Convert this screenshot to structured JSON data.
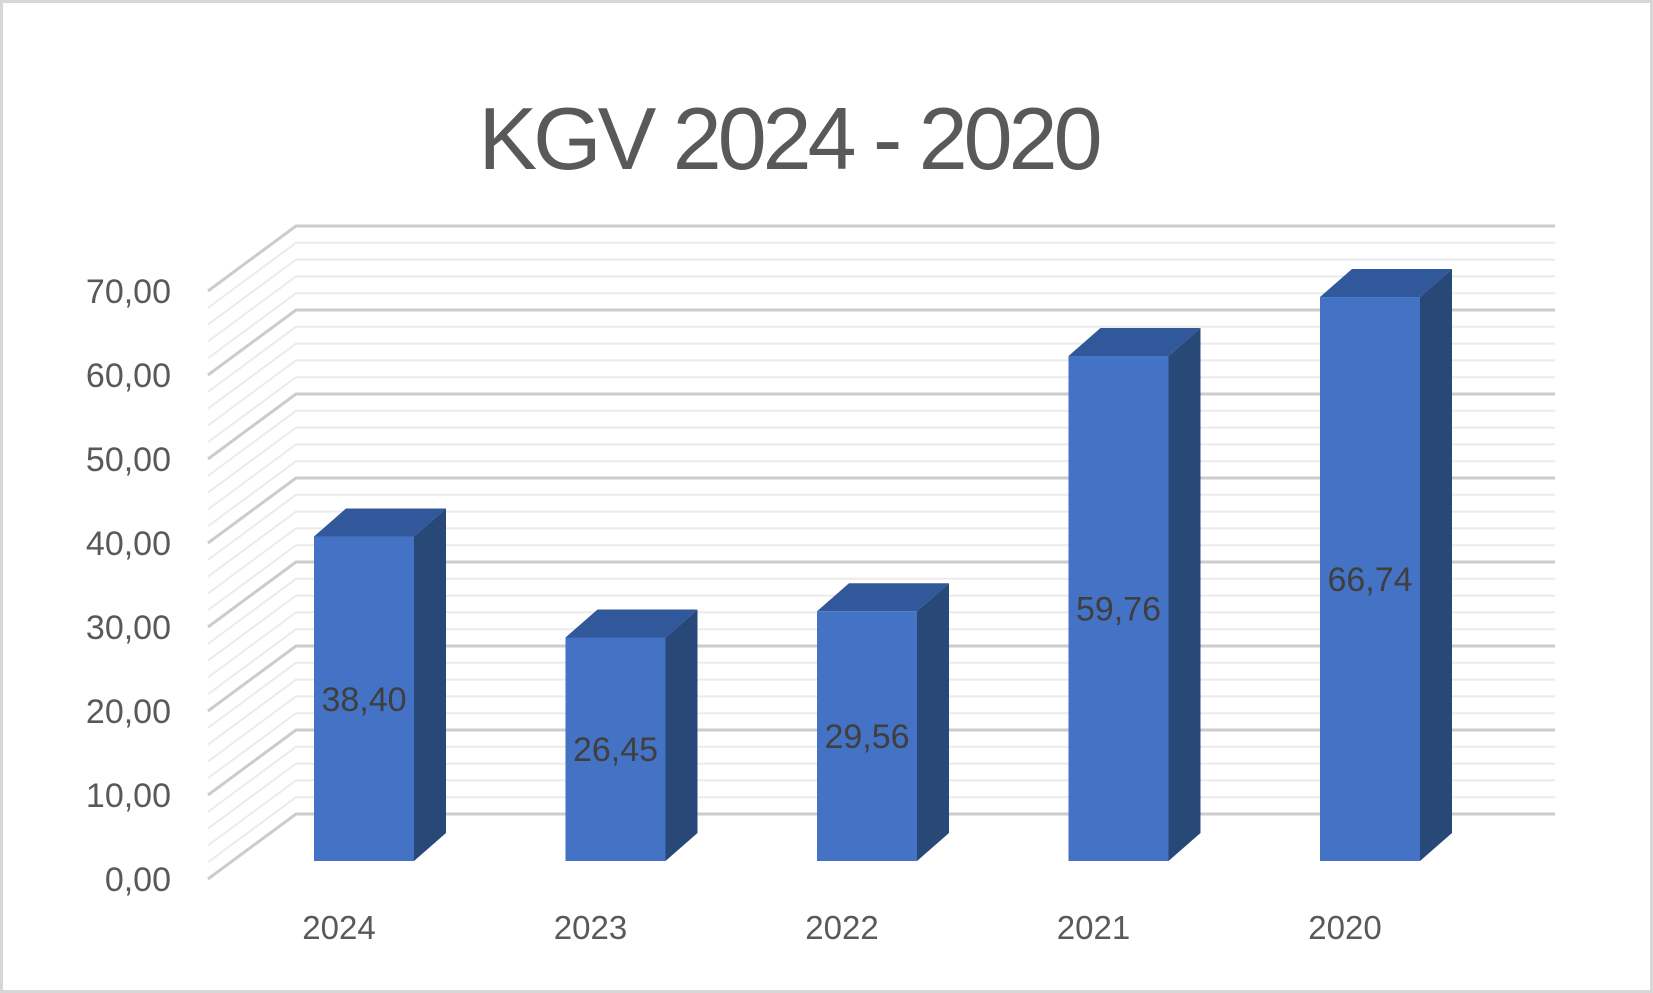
{
  "chart_data": {
    "type": "bar",
    "subtype": "3d-column",
    "title": "KGV 2024 - 2020",
    "categories": [
      "2024",
      "2023",
      "2022",
      "2021",
      "2020"
    ],
    "values": [
      38.4,
      26.45,
      29.56,
      59.76,
      66.74
    ],
    "value_labels": [
      "38,40",
      "26,45",
      "29,56",
      "59,76",
      "66,74"
    ],
    "series_name": "KGV",
    "xlabel": "",
    "ylabel": "",
    "ylim": [
      0,
      70
    ],
    "y_major_unit": 10,
    "y_minor_unit": 2,
    "y_tick_labels": [
      "0,00",
      "10,00",
      "20,00",
      "30,00",
      "40,00",
      "50,00",
      "60,00",
      "70,00"
    ],
    "grid": "major-and-minor",
    "legend_position": "none",
    "colors": {
      "bar_front": "#4472C4",
      "bar_top": "#31589A",
      "bar_side": "#284878",
      "major_gridline": "#CCCCCC",
      "minor_gridline": "#EBEBEB",
      "title_text": "#595959",
      "axis_text": "#595959",
      "data_label_text": "#3F3F3F",
      "frame_border": "#D7D7D7",
      "background": "#FFFFFF"
    }
  }
}
